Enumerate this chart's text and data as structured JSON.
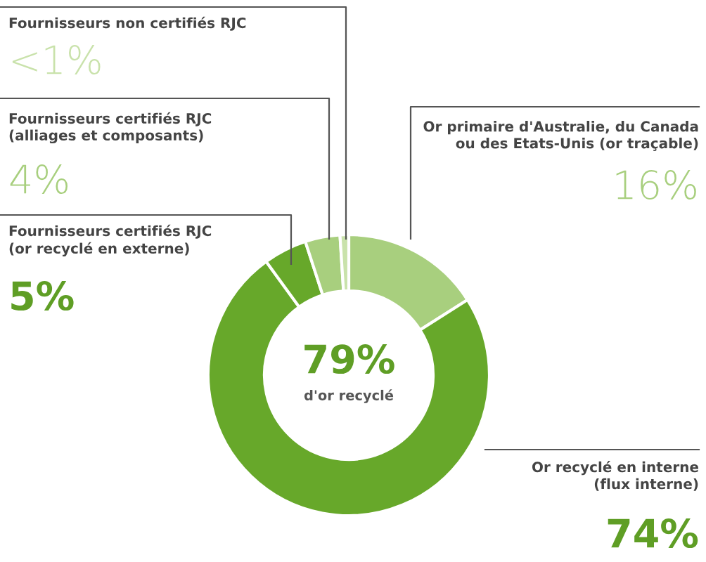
{
  "chart_data": {
    "type": "donut",
    "categories": [
      "Or primaire d'Australie, du Canada\nou des Etats-Unis (or traçable)",
      "Or recyclé en interne\n(flux interne)",
      "Fournisseurs certifiés RJC\n(or recyclé en externe)",
      "Fournisseurs certifiés RJC\n(alliages et composants)",
      "Fournisseurs non certifiés RJC"
    ],
    "values": [
      16,
      74,
      5,
      4,
      1
    ],
    "value_labels": [
      "16%",
      "74%",
      "5%",
      "4%",
      "<1%"
    ],
    "colors": [
      "#a8cf7e",
      "#67a82a",
      "#67a82a",
      "#a8cf7e",
      "#c9e2ab"
    ],
    "annotations": [
      "79%",
      "d'or recyclé"
    ]
  }
}
